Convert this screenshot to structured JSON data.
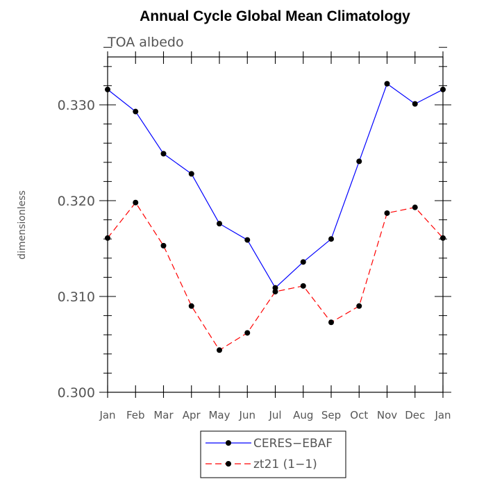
{
  "chart_data": {
    "type": "line",
    "title": "Annual Cycle Global Mean Climatology",
    "subtitle": "TOA albedo",
    "xlabel": "",
    "ylabel": "dimensionless",
    "categories": [
      "Jan",
      "Feb",
      "Mar",
      "Apr",
      "May",
      "Jun",
      "Jul",
      "Aug",
      "Sep",
      "Oct",
      "Nov",
      "Dec",
      "Jan"
    ],
    "ylim": [
      0.3,
      0.335
    ],
    "yticks": [
      "0.300",
      "0.310",
      "0.320",
      "0.330"
    ],
    "grid": false,
    "legend_position": "bottom-center",
    "series": [
      {
        "name": "CERES−EBAF",
        "color": "#0000ff",
        "line_style": "solid",
        "values": [
          0.3316,
          0.3293,
          0.3249,
          0.3228,
          0.3176,
          0.3159,
          0.3109,
          0.3136,
          0.316,
          0.3241,
          0.3322,
          0.3301,
          0.3316
        ]
      },
      {
        "name": "zt21 (1−1)",
        "color": "#ff0000",
        "line_style": "dashed",
        "values": [
          0.3161,
          0.3198,
          0.3153,
          0.309,
          0.3044,
          0.3062,
          0.3105,
          0.3111,
          0.3073,
          0.309,
          0.3187,
          0.3193,
          0.3161
        ]
      }
    ]
  }
}
